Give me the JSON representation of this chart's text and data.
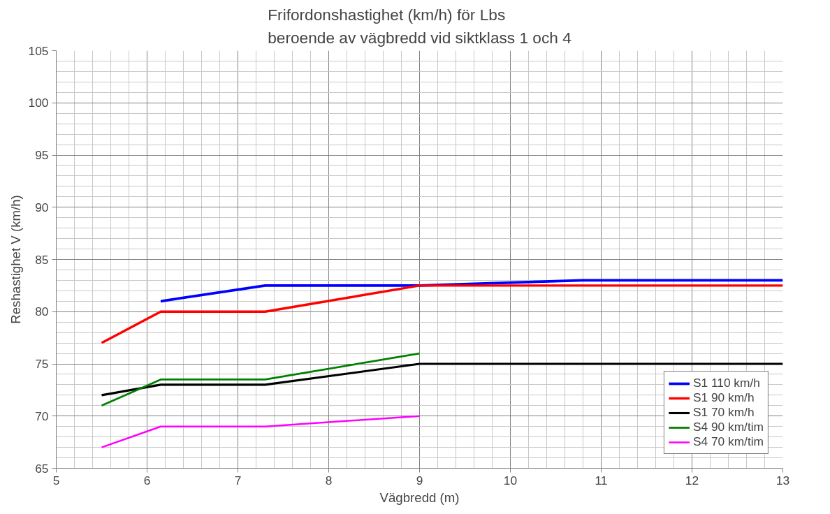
{
  "chart_data": {
    "type": "line",
    "title": "Frifordonshastighet (km/h) för Lbs\nberoende av vägbredd vid siktklass 1 och 4",
    "xlabel": "Vägbredd (m)",
    "ylabel": "Reshastighet V (km/h)",
    "xlim": [
      5,
      13
    ],
    "xticks": [
      5,
      6,
      7,
      8,
      9,
      10,
      11,
      12,
      13
    ],
    "ylim": [
      65,
      105
    ],
    "yticks": [
      65,
      70,
      75,
      80,
      85,
      90,
      95,
      100,
      105
    ],
    "grid": true,
    "legend": "bottom right",
    "marker": "none",
    "line_style": "solid",
    "series": [
      {
        "name": "S1 110 km/h",
        "color": "#0000ff",
        "x": [
          6.15,
          7.3,
          9,
          10.8,
          13
        ],
        "values": [
          81,
          82.5,
          82.5,
          83,
          83
        ]
      },
      {
        "name": "S1 90 km/h",
        "color": "#ff0000",
        "x": [
          5.5,
          6.15,
          7.3,
          9,
          13
        ],
        "values": [
          77,
          80,
          80,
          82.5,
          82.5
        ]
      },
      {
        "name": "S1 70 km/h",
        "color": "#000000",
        "x": [
          5.5,
          6.15,
          7.3,
          9,
          13
        ],
        "values": [
          72,
          73,
          73,
          75,
          75
        ]
      },
      {
        "name": "S4 90 km/tim",
        "color": "#008000",
        "x": [
          5.5,
          6.15,
          7.3,
          9
        ],
        "values": [
          71,
          73.5,
          73.5,
          76
        ]
      },
      {
        "name": "S4 70 km/tim",
        "color": "#ff00ff",
        "x": [
          5.5,
          6.15,
          7.3,
          9
        ],
        "values": [
          67,
          69,
          69,
          70
        ]
      }
    ]
  }
}
